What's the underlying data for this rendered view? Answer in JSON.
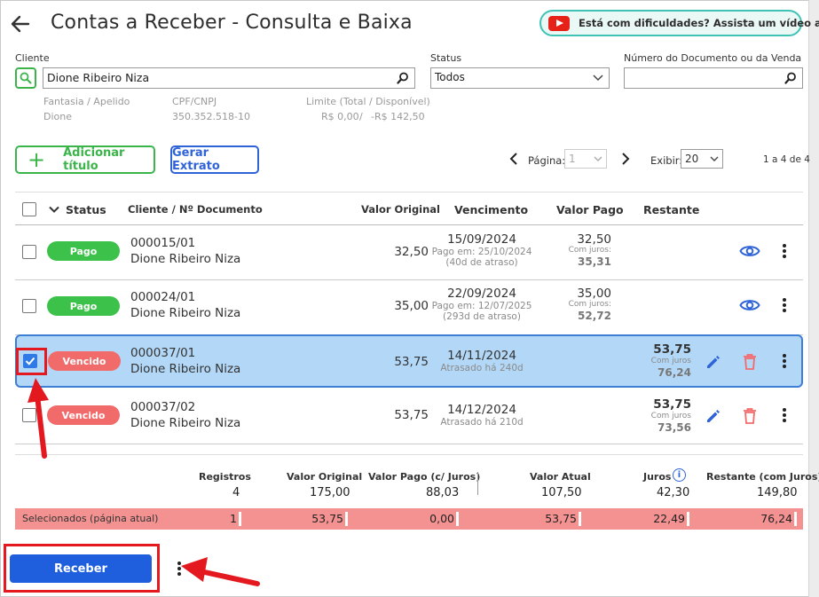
{
  "header": {
    "title": "Contas a Receber - Consulta e Baixa",
    "help_text": "Está com dificuldades? Assista um vídeo agora!"
  },
  "filters": {
    "cliente_label": "Cliente",
    "cliente_value": "Dione Ribeiro Niza",
    "status_label": "Status",
    "status_value": "Todos",
    "documento_label": "Número do Documento ou da Venda",
    "documento_value": ""
  },
  "client_info": {
    "fantasia_label": "Fantasia / Apelido",
    "fantasia_value": "Dione",
    "cpf_label": "CPF/CNPJ",
    "cpf_value": "350.352.518-10",
    "limite_label": "Limite (Total / Disponível)",
    "limite_total": "R$ 0,00",
    "limite_sep": "/",
    "limite_disp": "-R$ 142,50"
  },
  "toolbar": {
    "add_label": "Adicionar título",
    "extrato_label": "Gerar Extrato",
    "pagina_label": "Página:",
    "pagina_value": "1",
    "exibir_label": "Exibir:",
    "exibir_value": "20",
    "count_text": "1 a 4 de 4"
  },
  "table": {
    "headers": {
      "status": "Status",
      "cliente": "Cliente / Nº Documento",
      "valor_original": "Valor Original",
      "vencimento": "Vencimento",
      "valor_pago": "Valor Pago",
      "restante": "Restante"
    },
    "rows": [
      {
        "status": "Pago",
        "doc": "000015/01",
        "cliente": "Dione Ribeiro Niza",
        "valor": "32,50",
        "venc": "15/09/2024",
        "venc_sub1": "Pago em: 25/10/2024",
        "venc_sub2": "(40d de atraso)",
        "pago": "32,50",
        "pago_sub": "Com juros:",
        "pago_juros": "35,31",
        "restante": "",
        "rest_sub": "",
        "rest_juros": "",
        "selected": false
      },
      {
        "status": "Pago",
        "doc": "000024/01",
        "cliente": "Dione Ribeiro Niza",
        "valor": "35,00",
        "venc": "22/09/2024",
        "venc_sub1": "Pago em: 12/07/2025",
        "venc_sub2": "(293d de atraso)",
        "pago": "35,00",
        "pago_sub": "Com juros:",
        "pago_juros": "52,72",
        "restante": "",
        "rest_sub": "",
        "rest_juros": "",
        "selected": false
      },
      {
        "status": "Vencido",
        "doc": "000037/01",
        "cliente": "Dione Ribeiro Niza",
        "valor": "53,75",
        "venc": "14/11/2024",
        "venc_sub1": "Atrasado há 240d",
        "venc_sub2": "",
        "pago": "",
        "pago_sub": "",
        "pago_juros": "",
        "restante": "53,75",
        "rest_sub": "Com juros",
        "rest_juros": "76,24",
        "selected": true
      },
      {
        "status": "Vencido",
        "doc": "000037/02",
        "cliente": "Dione Ribeiro Niza",
        "valor": "53,75",
        "venc": "14/12/2024",
        "venc_sub1": "Atrasado há 210d",
        "venc_sub2": "",
        "pago": "",
        "pago_sub": "",
        "pago_juros": "",
        "restante": "53,75",
        "rest_sub": "Com juros",
        "rest_juros": "73,56",
        "selected": false
      }
    ]
  },
  "summary": {
    "labels": {
      "registros": "Registros",
      "valor_original": "Valor Original",
      "valor_pago": "Valor Pago (c/ Juros)",
      "valor_atual": "Valor Atual",
      "juros": "Juros",
      "restante": "Restante (com Juros)"
    },
    "values": {
      "registros": "4",
      "valor_original": "175,00",
      "valor_pago": "88,03",
      "valor_atual": "107,50",
      "juros": "42,30",
      "restante": "149,80"
    },
    "selected": {
      "label": "Selecionados (página atual)",
      "registros": "1",
      "valor_original": "53,75",
      "valor_pago": "0,00",
      "valor_atual": "53,75",
      "juros": "22,49",
      "restante": "76,24"
    }
  },
  "footer": {
    "receber_label": "Receber"
  },
  "colors": {
    "accent_blue": "#1f5fde",
    "green": "#3cc24a",
    "red_badge": "#f26b6b",
    "selected_row": "#b3d8f7",
    "selected_bar": "#f49191",
    "annotation_red": "#e3191f"
  }
}
